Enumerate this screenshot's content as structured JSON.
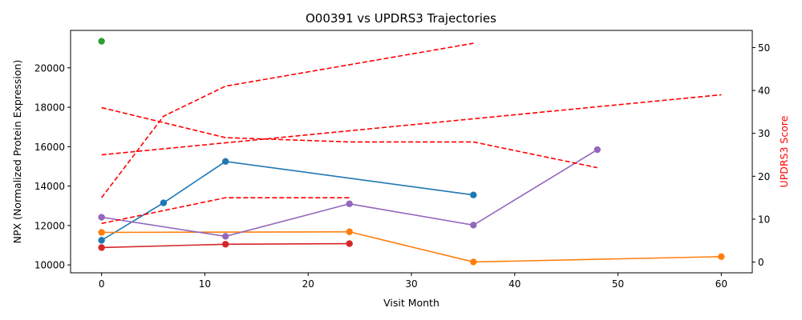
{
  "chart_data": {
    "type": "line",
    "title": "O00391 vs UPDRS3 Trajectories",
    "xlabel": "Visit Month",
    "ylabel_left": "NPX (Normalized Protein Expression)",
    "ylabel_right": "UPDRS3 Score",
    "xlim": [
      -3,
      63
    ],
    "ylim_left": [
      9600,
      21900
    ],
    "ylim_right": [
      -2.5,
      54
    ],
    "x_ticks": [
      0,
      10,
      20,
      30,
      40,
      50,
      60
    ],
    "y_ticks_left": [
      10000,
      12000,
      14000,
      16000,
      18000,
      20000
    ],
    "y_ticks_right": [
      0,
      10,
      20,
      30,
      40,
      50
    ],
    "grid": false,
    "npx_series": [
      {
        "color": "#1f77b4",
        "x": [
          0,
          6,
          12,
          36
        ],
        "y": [
          11250,
          13150,
          15250,
          13550
        ]
      },
      {
        "color": "#ff7f0e",
        "x": [
          0,
          24,
          36,
          60
        ],
        "y": [
          11650,
          11680,
          10150,
          10420
        ]
      },
      {
        "color": "#2ca02c",
        "x": [
          0
        ],
        "y": [
          21350
        ]
      },
      {
        "color": "#d62728",
        "x": [
          0,
          12,
          24
        ],
        "y": [
          10880,
          11050,
          11080
        ]
      },
      {
        "color": "#9467bd",
        "x": [
          0,
          12,
          24,
          36,
          48
        ],
        "y": [
          12420,
          11450,
          13100,
          12020,
          15850
        ]
      }
    ],
    "updrs_series": [
      {
        "color": "#ff0000",
        "x": [
          0,
          6,
          12,
          36
        ],
        "y": [
          15,
          34,
          41,
          51
        ]
      },
      {
        "color": "#ff0000",
        "x": [
          0,
          12,
          24,
          36,
          48
        ],
        "y": [
          36,
          29,
          28,
          28,
          22
        ]
      },
      {
        "color": "#ff0000",
        "x": [
          0,
          60
        ],
        "y": [
          25,
          39
        ]
      },
      {
        "color": "#ff0000",
        "x": [
          0,
          12,
          24
        ],
        "y": [
          9,
          15,
          15
        ]
      }
    ]
  }
}
